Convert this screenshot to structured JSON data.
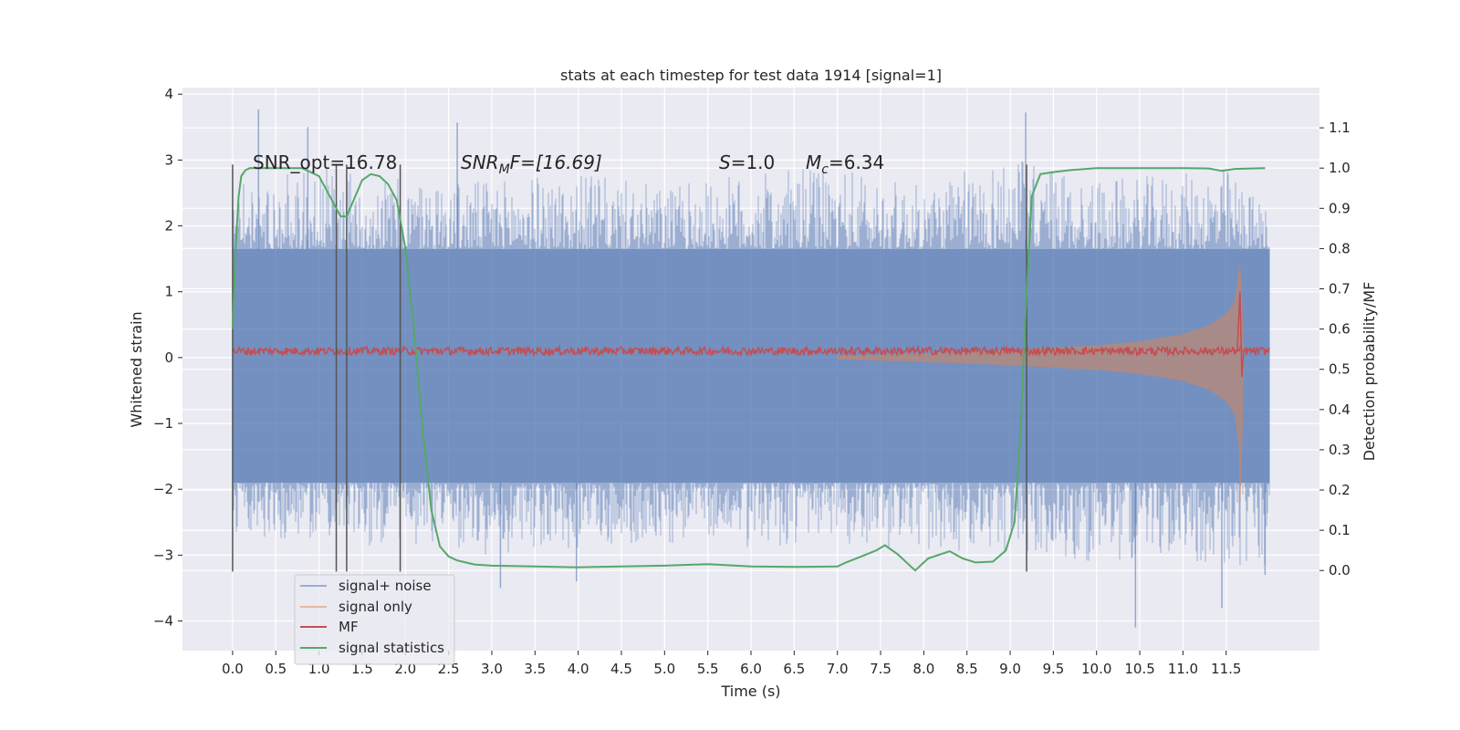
{
  "chart_data": {
    "type": "line",
    "title": "stats at each timestep for test data 1914 [signal=1]",
    "xlabel": "Time (s)",
    "ylabel_left": "Whitened strain",
    "ylabel_right": "Detection probability/MF",
    "xlim": [
      -0.58,
      12.58
    ],
    "ylim_left": [
      -4.45,
      4.1
    ],
    "ylim_right": [
      -0.199,
      1.2
    ],
    "x_ticks": [
      0.0,
      0.5,
      1.0,
      1.5,
      2.0,
      2.5,
      3.0,
      3.5,
      4.0,
      4.5,
      5.0,
      5.5,
      6.0,
      6.5,
      7.0,
      7.5,
      8.0,
      8.5,
      9.0,
      9.5,
      10.0,
      10.5,
      11.0,
      11.5
    ],
    "x_tick_labels": [
      "0.0",
      "0.5",
      "1.0",
      "1.5",
      "2.0",
      "2.5",
      "3.0",
      "3.5",
      "4.0",
      "4.5",
      "5.0",
      "5.5",
      "6.0",
      "6.5",
      "7.0",
      "7.5",
      "8.0",
      "8.5",
      "9.0",
      "9.5",
      "10.0",
      "10.5",
      "11.0",
      "11.5"
    ],
    "y_left_ticks": [
      -4,
      -3,
      -2,
      -1,
      0,
      1,
      2,
      3,
      4
    ],
    "y_left_tick_labels": [
      "−4",
      "−3",
      "−2",
      "−1",
      "0",
      "1",
      "2",
      "3",
      "4"
    ],
    "y_right_ticks": [
      0.0,
      0.1,
      0.2,
      0.3,
      0.4,
      0.5,
      0.6,
      0.7,
      0.8,
      0.9,
      1.0,
      1.1
    ],
    "y_right_tick_labels": [
      "0.0",
      "0.1",
      "0.2",
      "0.3",
      "0.4",
      "0.5",
      "0.6",
      "0.7",
      "0.8",
      "0.9",
      "1.0",
      "1.1"
    ],
    "grid": true,
    "legend_position": "lower-left",
    "legend": [
      {
        "label": "signal+ noise",
        "color": "#4c72b0"
      },
      {
        "label": "signal only",
        "color": "#dd8452"
      },
      {
        "label": "MF",
        "color": "#c44e52"
      },
      {
        "label": "signal statistics",
        "color": "#55a868"
      }
    ],
    "annotations": {
      "snr_opt": "SNR_opt=16.78",
      "snr_mf_base": "SNR",
      "snr_mf_sub": "M",
      "snr_mf_rest": "F=[16.69]",
      "s_symbol": "S",
      "s_rest": "=1.0",
      "mc_symbol": "M",
      "mc_sub": "c",
      "mc_rest": "=6.34"
    },
    "vertical_lines_x": [
      0.0,
      1.2,
      1.32,
      1.94,
      9.19
    ],
    "vertical_lines_y_range": [
      -3.25,
      2.93
    ],
    "series": [
      {
        "name": "signal+ noise",
        "color": "#4c72b0",
        "x_range": [
          0.0,
          12.0
        ],
        "envelope_x": [
          0.0,
          1.0,
          2.0,
          3.0,
          4.0,
          5.0,
          6.0,
          7.0,
          8.0,
          9.0,
          10.0,
          11.0,
          11.5,
          11.95
        ],
        "upper_envelope": [
          2.6,
          2.9,
          2.7,
          2.7,
          2.8,
          2.6,
          2.8,
          2.9,
          2.6,
          3.1,
          2.7,
          2.8,
          2.9,
          2.3
        ],
        "lower_envelope": [
          -2.7,
          -2.8,
          -2.9,
          -3.0,
          -2.9,
          -2.8,
          -2.9,
          -2.8,
          -3.0,
          -3.0,
          -3.1,
          -3.0,
          -3.3,
          -3.2
        ],
        "band_upper": 1.65,
        "band_lower": -1.9,
        "spikes": [
          [
            0.3,
            3.77
          ],
          [
            0.87,
            3.5
          ],
          [
            2.6,
            3.57
          ],
          [
            3.1,
            -3.5
          ],
          [
            3.98,
            -3.4
          ],
          [
            9.18,
            3.72
          ],
          [
            10.45,
            -4.1
          ],
          [
            11.45,
            -3.8
          ],
          [
            11.95,
            -3.3
          ]
        ]
      },
      {
        "name": "signal only",
        "color": "#dd8452",
        "x": [
          7.0,
          8.0,
          9.0,
          10.0,
          10.5,
          11.0,
          11.3,
          11.5,
          11.6,
          11.66,
          11.68,
          11.7
        ],
        "amplitude": [
          0.02,
          0.06,
          0.11,
          0.18,
          0.24,
          0.35,
          0.48,
          0.66,
          0.85,
          1.42,
          0.9,
          0.05
        ]
      },
      {
        "name": "MF",
        "color": "#c44e52",
        "baseline": 0.1,
        "noise_amplitude": 0.06,
        "spike": [
          11.66,
          1.0,
          -0.3
        ]
      },
      {
        "name": "signal statistics",
        "color": "#55a868",
        "x": [
          0.0,
          0.03,
          0.07,
          0.1,
          0.15,
          0.2,
          0.3,
          0.5,
          0.8,
          1.0,
          1.1,
          1.2,
          1.25,
          1.32,
          1.4,
          1.5,
          1.6,
          1.7,
          1.8,
          1.9,
          2.0,
          2.1,
          2.2,
          2.3,
          2.4,
          2.5,
          2.6,
          2.8,
          3.0,
          3.5,
          4.0,
          4.5,
          5.0,
          5.5,
          6.0,
          6.5,
          7.0,
          7.1,
          7.3,
          7.45,
          7.55,
          7.7,
          7.9,
          8.05,
          8.3,
          8.45,
          8.6,
          8.8,
          8.95,
          9.05,
          9.12,
          9.18,
          9.25,
          9.35,
          9.5,
          9.7,
          10.0,
          11.0,
          11.3,
          11.45,
          11.6,
          11.95
        ],
        "y": [
          0.6,
          0.78,
          0.93,
          0.98,
          0.995,
          1.0,
          1.0,
          1.0,
          1.0,
          0.98,
          0.94,
          0.9,
          0.88,
          0.88,
          0.92,
          0.97,
          0.985,
          0.98,
          0.96,
          0.92,
          0.8,
          0.6,
          0.35,
          0.15,
          0.06,
          0.035,
          0.025,
          0.015,
          0.012,
          0.01,
          0.008,
          0.01,
          0.012,
          0.016,
          0.01,
          0.009,
          0.01,
          0.02,
          0.037,
          0.05,
          0.063,
          0.04,
          0.0,
          0.03,
          0.048,
          0.03,
          0.02,
          0.022,
          0.05,
          0.12,
          0.35,
          0.65,
          0.93,
          0.985,
          0.99,
          0.995,
          1.0,
          1.0,
          0.999,
          0.993,
          0.998,
          1.0
        ]
      }
    ]
  }
}
